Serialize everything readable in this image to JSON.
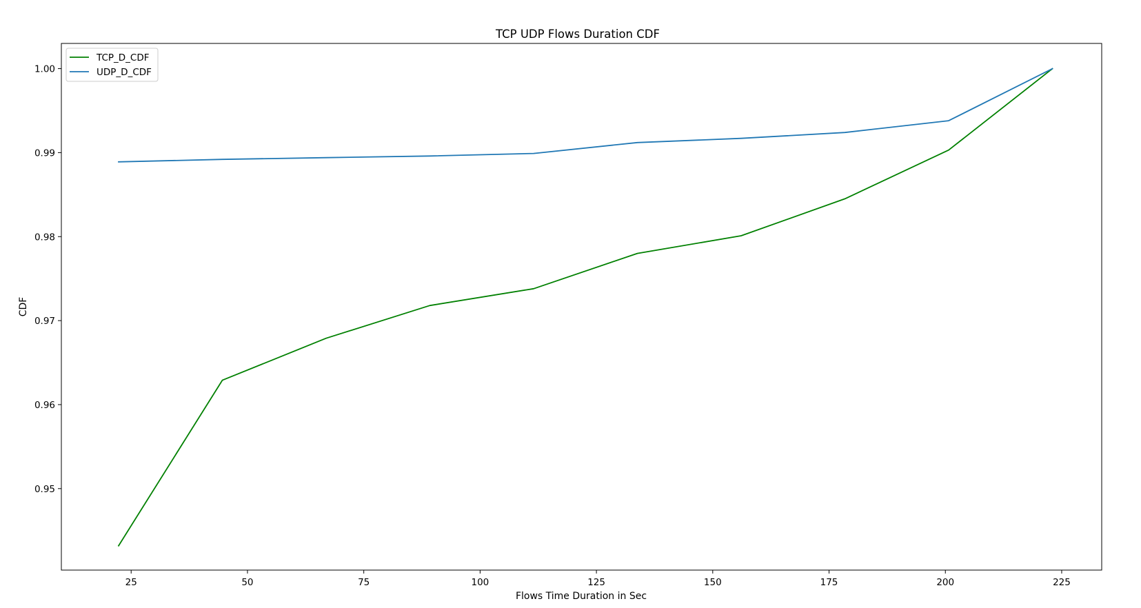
{
  "chart_data": {
    "type": "line",
    "title": "TCP UDP Flows Duration CDF",
    "xlabel": "Flows Time Duration in Sec",
    "ylabel": "CDF",
    "xlim": [
      10.0,
      233.6
    ],
    "ylim": [
      0.9403,
      1.003
    ],
    "xticks": [
      25,
      50,
      75,
      100,
      125,
      150,
      175,
      200,
      225
    ],
    "xtick_labels": [
      "25",
      "50",
      "75",
      "100",
      "125",
      "150",
      "175",
      "200",
      "225"
    ],
    "yticks": [
      0.95,
      0.96,
      0.97,
      0.98,
      0.99,
      1.0
    ],
    "ytick_labels": [
      "0.95",
      "0.96",
      "0.97",
      "0.98",
      "0.99",
      "1.00"
    ],
    "grid": false,
    "legend_position": "top-left",
    "x": [
      22.3,
      44.6,
      66.9,
      89.2,
      111.5,
      133.8,
      156.1,
      178.4,
      200.7,
      223.0
    ],
    "series": [
      {
        "name": "TCP_D_CDF",
        "color": "#008000",
        "values": [
          0.9432,
          0.9629,
          0.9679,
          0.9718,
          0.9738,
          0.978,
          0.9801,
          0.9845,
          0.9903,
          1.0
        ]
      },
      {
        "name": "UDP_D_CDF",
        "color": "#1f77b4",
        "values": [
          0.9889,
          0.9892,
          0.9894,
          0.9896,
          0.9899,
          0.9912,
          0.9917,
          0.9924,
          0.9938,
          1.0
        ]
      }
    ]
  }
}
